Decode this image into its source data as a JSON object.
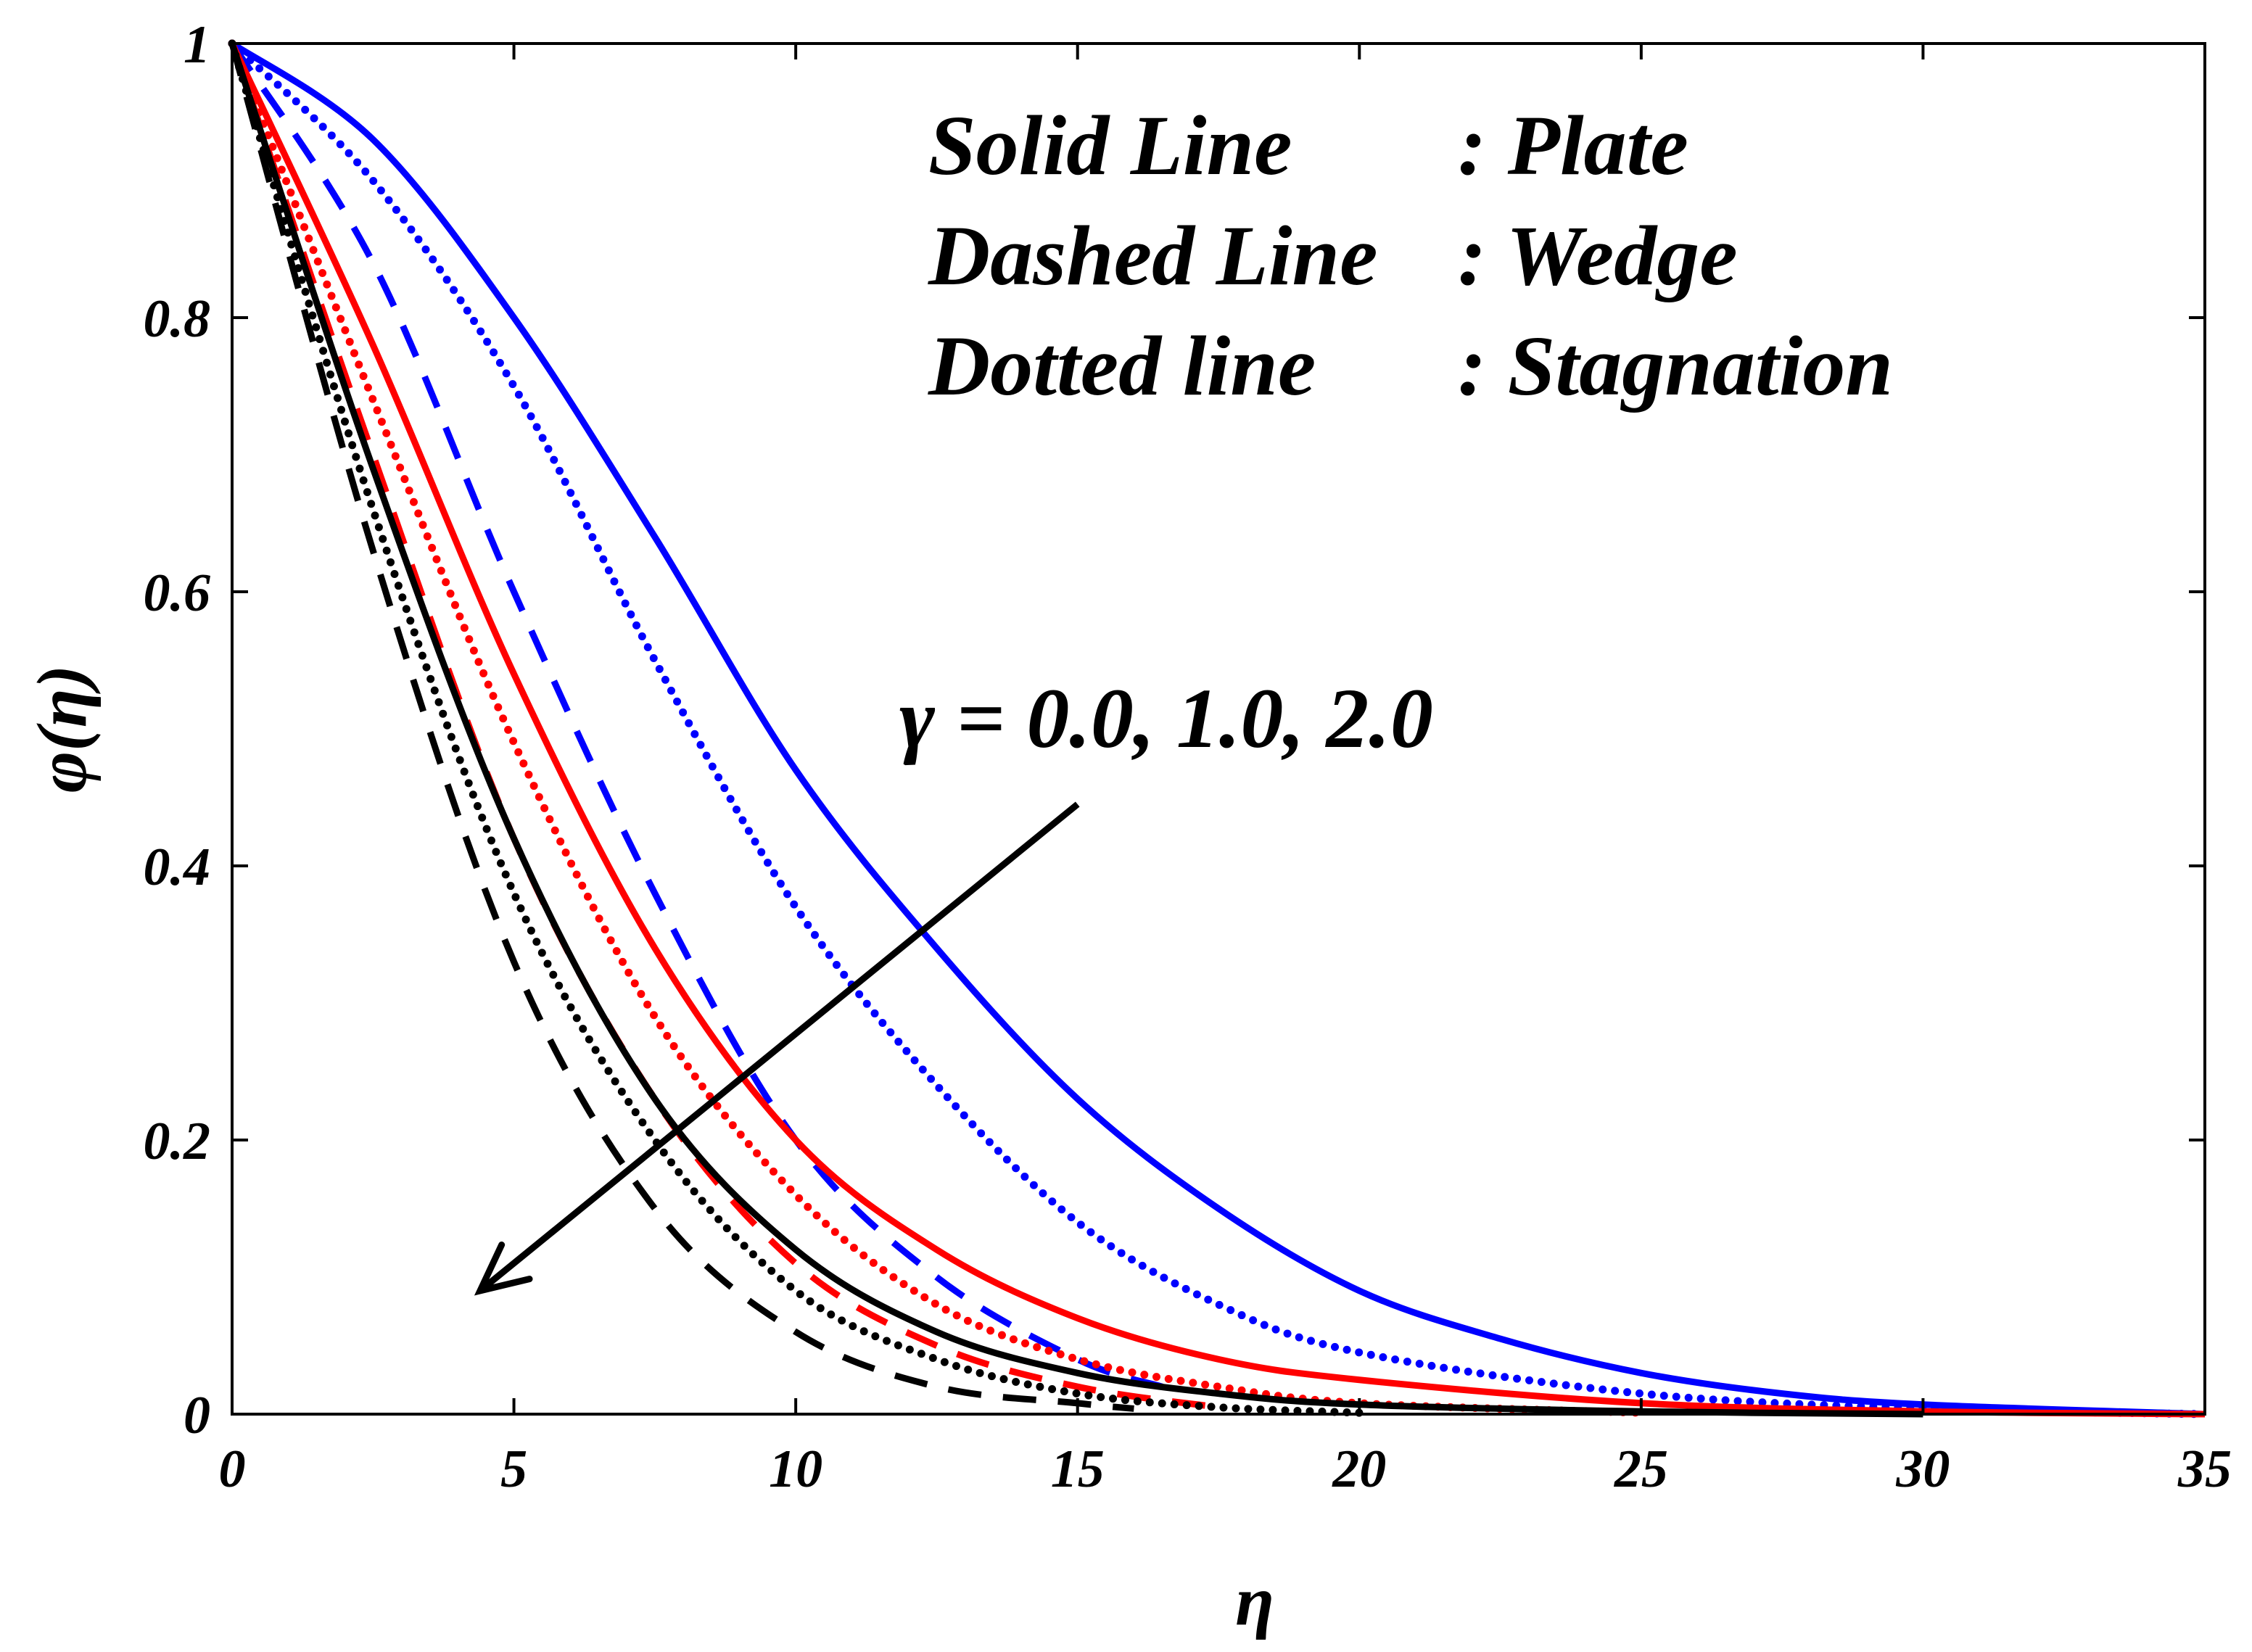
{
  "chart_data": {
    "type": "line",
    "title": "",
    "xlabel": "η",
    "ylabel": "φ(η)",
    "xlim": [
      0,
      35
    ],
    "ylim": [
      0,
      1
    ],
    "xticks": [
      0,
      5,
      10,
      15,
      20,
      25,
      30,
      35
    ],
    "xtick_labels": [
      "0",
      "5",
      "10",
      "15",
      "20",
      "25",
      "30",
      "35"
    ],
    "yticks": [
      0,
      0.2,
      0.4,
      0.6,
      0.8,
      1
    ],
    "ytick_labels": [
      "0",
      "0.2",
      "0.4",
      "0.6",
      "0.8",
      "1"
    ],
    "grid": false,
    "legend_text": [
      {
        "style": "Solid Line",
        "geometry": ": Plate"
      },
      {
        "style": "Dashed Line",
        "geometry": ": Wedge"
      },
      {
        "style": "Dotted line",
        "geometry": ": Stagnation"
      }
    ],
    "annotation": {
      "text": "γ = 0.0, 1.0, 2.0",
      "arrow_from": [
        15,
        0.445
      ],
      "arrow_to": [
        4.4,
        0.09
      ]
    },
    "colors": {
      "gamma_0": "#0000ff",
      "gamma_1": "#ff0000",
      "gamma_2": "#000000"
    },
    "series": [
      {
        "name": "Plate, γ = 0.0",
        "geometry": "Plate",
        "gamma": 0.0,
        "color": "#0000ff",
        "line_style": "solid",
        "x": [
          0,
          2.5,
          5,
          7.5,
          10,
          12.5,
          15,
          17.5,
          20,
          22.5,
          25,
          27.5,
          30,
          35
        ],
        "y": [
          1.0,
          0.93,
          0.8,
          0.64,
          0.47,
          0.34,
          0.23,
          0.15,
          0.09,
          0.055,
          0.03,
          0.015,
          0.007,
          0.0
        ]
      },
      {
        "name": "Wedge, γ = 0.0",
        "geometry": "Wedge",
        "gamma": 0.0,
        "color": "#0000ff",
        "line_style": "dashed",
        "x": [
          0,
          2.5,
          5,
          7.5,
          10,
          12.5,
          15,
          16.5
        ],
        "y": [
          1.0,
          0.84,
          0.6,
          0.38,
          0.2,
          0.1,
          0.04,
          0.02
        ]
      },
      {
        "name": "Stagnation, γ = 0.0",
        "geometry": "Stagnation",
        "gamma": 0.0,
        "color": "#0000ff",
        "line_style": "dotted",
        "x": [
          0,
          2.5,
          5,
          7.5,
          10,
          12.5,
          15,
          17.5,
          20,
          25,
          30,
          35
        ],
        "y": [
          1.0,
          0.9,
          0.75,
          0.55,
          0.37,
          0.24,
          0.14,
          0.08,
          0.045,
          0.015,
          0.004,
          0.0
        ]
      },
      {
        "name": "Plate, γ = 1.0",
        "geometry": "Plate",
        "gamma": 1.0,
        "color": "#ff0000",
        "line_style": "solid",
        "x": [
          0,
          2.5,
          5,
          7.5,
          10,
          12.5,
          15,
          17.5,
          20,
          25,
          30,
          35
        ],
        "y": [
          1.0,
          0.78,
          0.54,
          0.34,
          0.2,
          0.12,
          0.07,
          0.04,
          0.025,
          0.008,
          0.002,
          0.0
        ]
      },
      {
        "name": "Wedge, γ = 1.0",
        "geometry": "Wedge",
        "gamma": 1.0,
        "color": "#ff0000",
        "line_style": "dashed",
        "x": [
          0,
          2.5,
          5,
          7.5,
          10,
          12.5,
          15,
          17.5
        ],
        "y": [
          1.0,
          0.7,
          0.42,
          0.23,
          0.11,
          0.05,
          0.02,
          0.005
        ]
      },
      {
        "name": "Stagnation, γ = 1.0",
        "geometry": "Stagnation",
        "gamma": 1.0,
        "color": "#ff0000",
        "line_style": "dotted",
        "x": [
          0,
          2.5,
          5,
          7.5,
          10,
          12.5,
          15,
          17.5,
          20,
          25
        ],
        "y": [
          1.0,
          0.74,
          0.49,
          0.29,
          0.16,
          0.08,
          0.04,
          0.02,
          0.008,
          0.001
        ]
      },
      {
        "name": "Plate, γ = 2.0",
        "geometry": "Plate",
        "gamma": 2.0,
        "color": "#000000",
        "line_style": "solid",
        "x": [
          0,
          2.5,
          5,
          7.5,
          10,
          12.5,
          15,
          17.5,
          20,
          25,
          30
        ],
        "y": [
          1.0,
          0.69,
          0.42,
          0.23,
          0.12,
          0.06,
          0.03,
          0.015,
          0.007,
          0.002,
          0.0
        ]
      },
      {
        "name": "Wedge, γ = 2.0",
        "geometry": "Wedge",
        "gamma": 2.0,
        "color": "#000000",
        "line_style": "dashed",
        "x": [
          0,
          2.5,
          5,
          7.5,
          10,
          12.5,
          15,
          16
        ],
        "y": [
          1.0,
          0.63,
          0.33,
          0.15,
          0.06,
          0.02,
          0.008,
          0.004
        ]
      },
      {
        "name": "Stagnation, γ = 2.0",
        "geometry": "Stagnation",
        "gamma": 2.0,
        "color": "#000000",
        "line_style": "dotted",
        "x": [
          0,
          2.5,
          5,
          7.5,
          10,
          12.5,
          15,
          17.5,
          20
        ],
        "y": [
          1.0,
          0.66,
          0.38,
          0.2,
          0.09,
          0.04,
          0.015,
          0.005,
          0.001
        ]
      }
    ]
  }
}
